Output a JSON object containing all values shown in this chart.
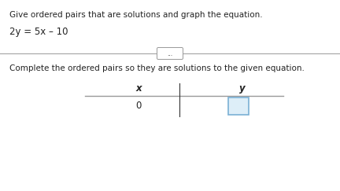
{
  "title_text": "Give ordered pairs that are solutions and graph the equation.",
  "equation": "2y = 5x – 10",
  "divider_button_text": "...",
  "instruction_text": "Complete the ordered pairs so they are solutions to the given equation.",
  "table_x_label": "x",
  "table_y_label": "y",
  "table_x_value": "0",
  "bg_color": "#ffffff",
  "title_fontsize": 7.5,
  "equation_fontsize": 8.5,
  "instruction_fontsize": 7.5,
  "table_fontsize": 8.5,
  "text_color": "#222222",
  "line_color": "#999999",
  "box_edge_color": "#7ab0d4",
  "box_fill_color": "#ddeef8"
}
